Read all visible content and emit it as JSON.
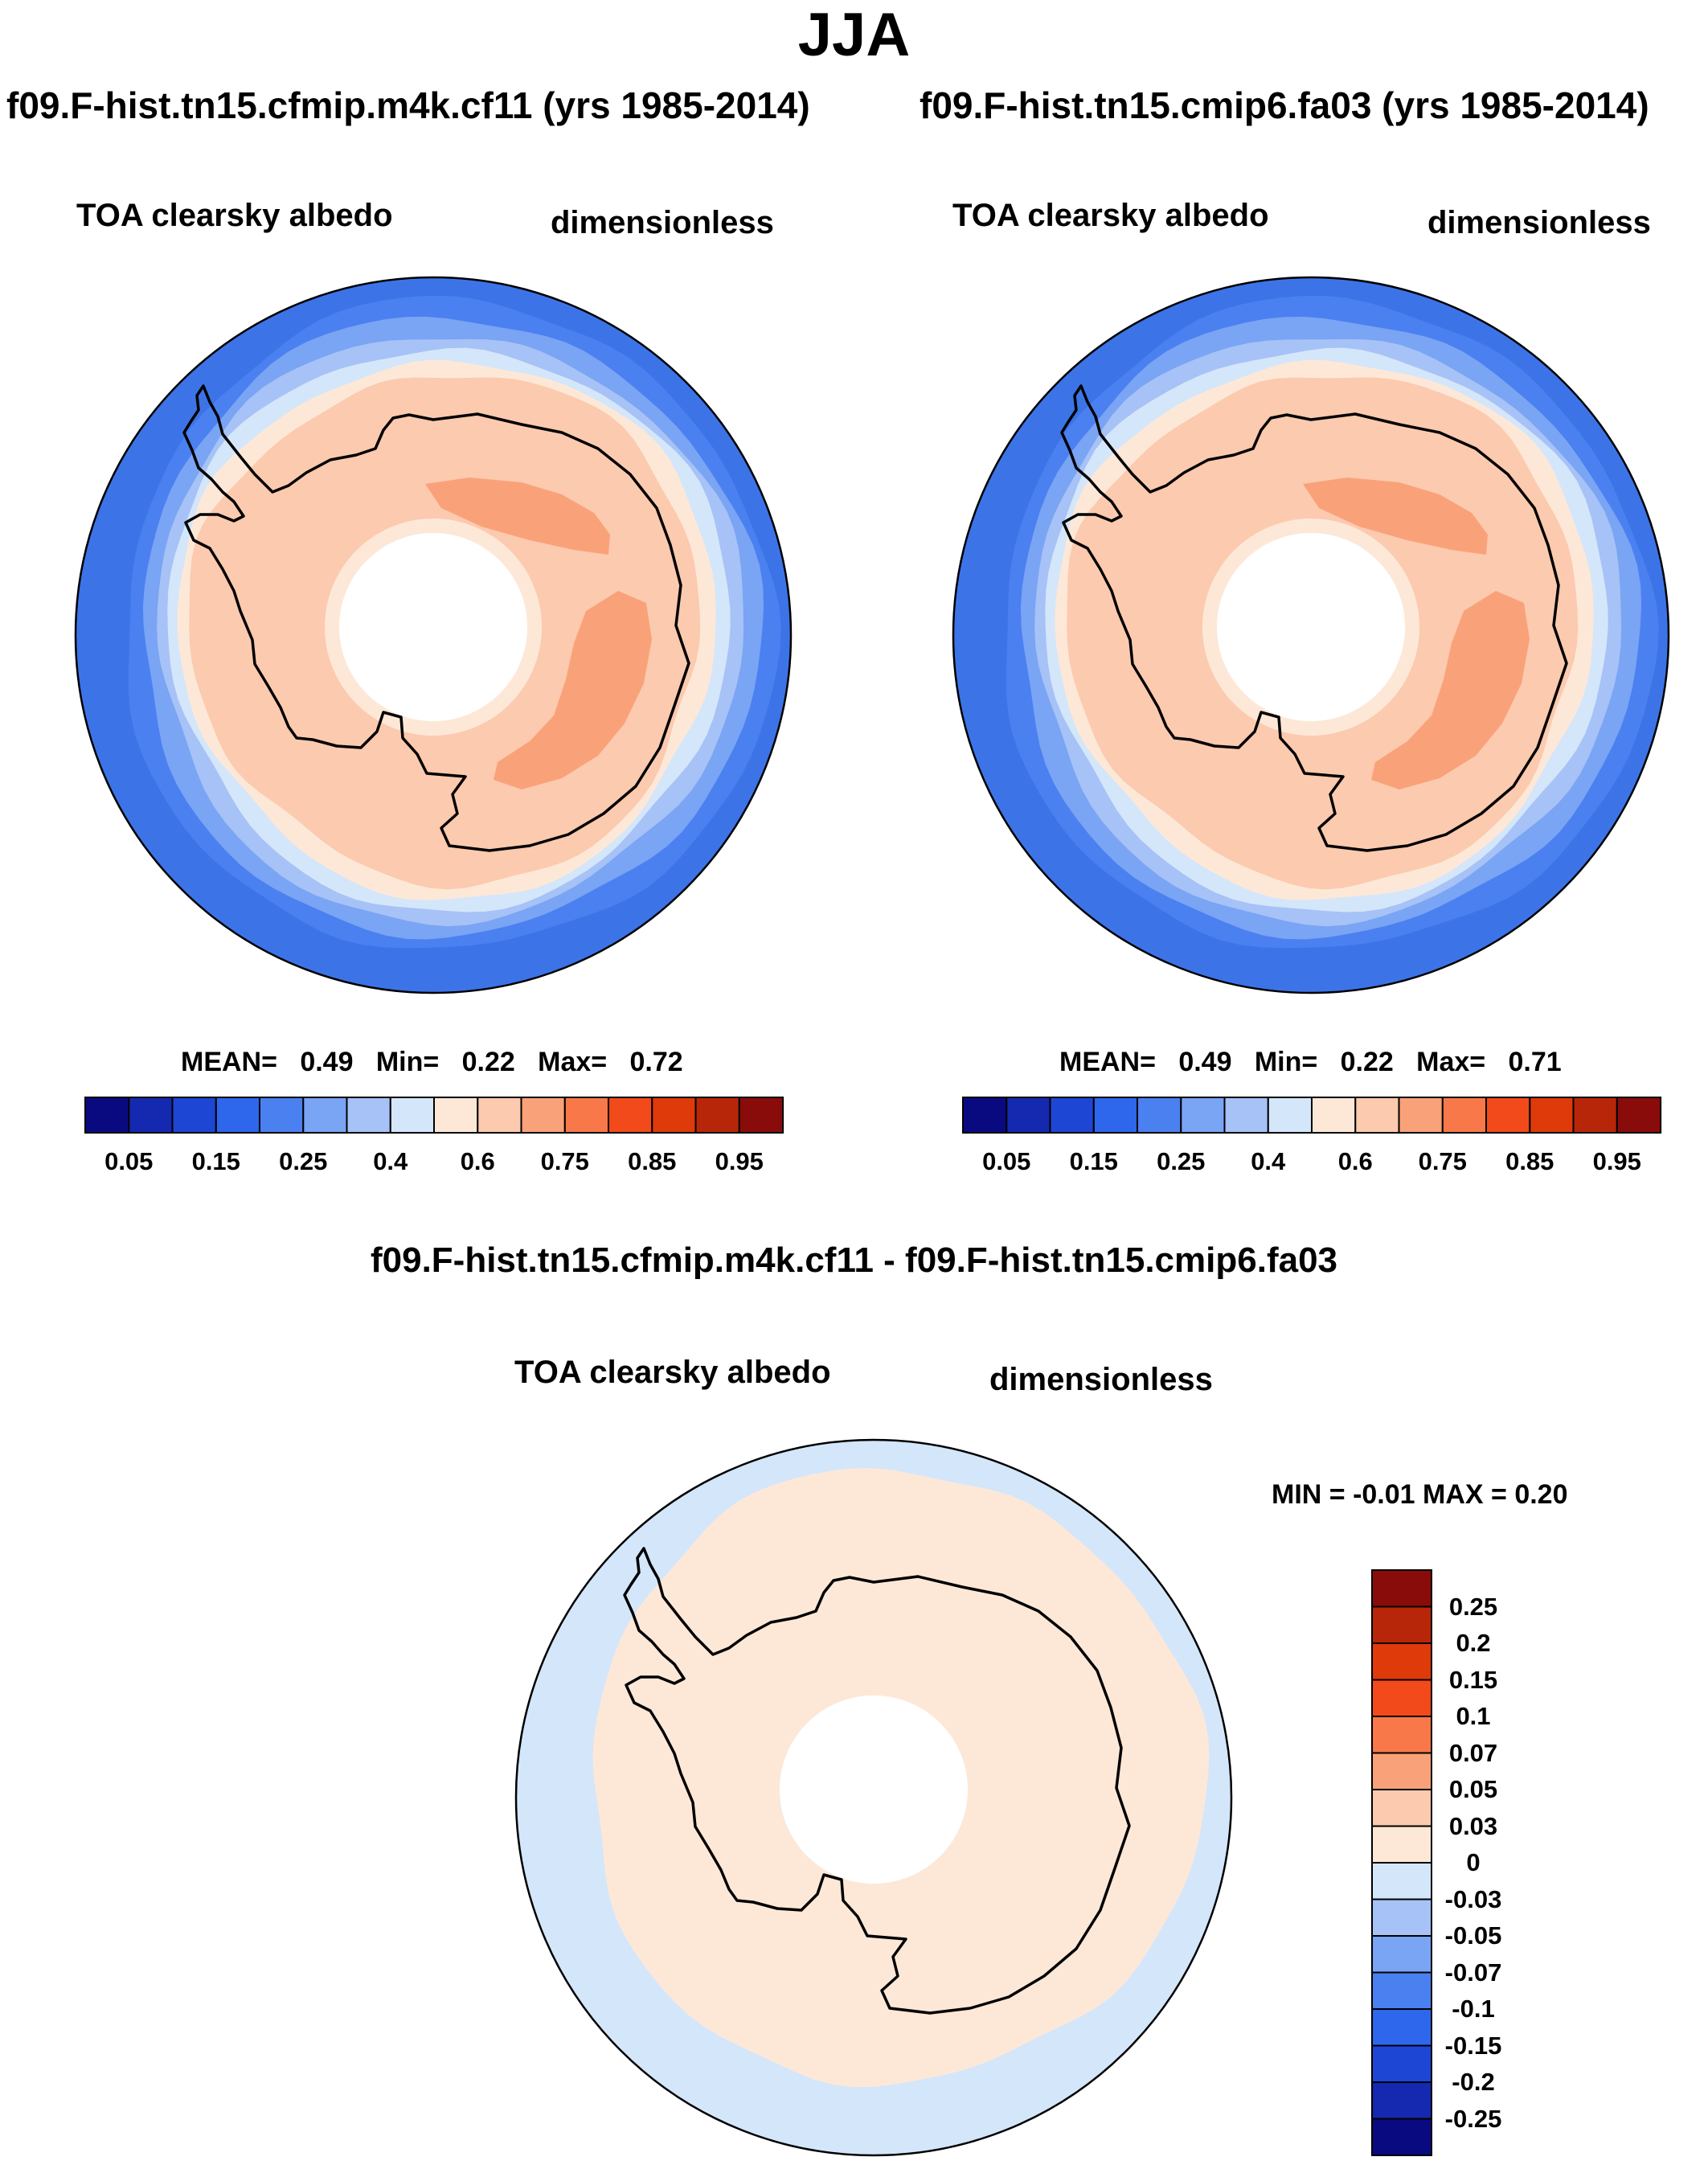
{
  "title": "JJA",
  "variable": "TOA clearsky albedo",
  "units": "dimensionless",
  "panels": [
    {
      "case_title": "f09.F-hist.tn15.cfmip.m4k.cf11 (yrs 1985-2014)",
      "stats": {
        "mean_label": "MEAN=",
        "mean": "0.49",
        "min_label": "Min=",
        "min": "0.22",
        "max_label": "Max=",
        "max": "0.72"
      }
    },
    {
      "case_title": "f09.F-hist.tn15.cmip6.fa03 (yrs 1985-2014)",
      "stats": {
        "mean_label": "MEAN=",
        "mean": "0.49",
        "min_label": "Min=",
        "min": "0.22",
        "max_label": "Max=",
        "max": "0.71"
      }
    }
  ],
  "difference": {
    "title": "f09.F-hist.tn15.cfmip.m4k.cf11 - f09.F-hist.tn15.cmip6.fa03",
    "min_max_text": "MIN =  -0.01 MAX =   0.20"
  },
  "chart_data": [
    {
      "type": "contour-map",
      "projection": "south-polar-stereographic",
      "title": "TOA clearsky albedo",
      "case": "f09.F-hist.tn15.cfmip.m4k.cf11 (yrs 1985-2014)",
      "mean": 0.49,
      "min": 0.22,
      "max": 0.72,
      "levels": [
        0.05,
        0.1,
        0.15,
        0.2,
        0.25,
        0.3,
        0.4,
        0.5,
        0.6,
        0.7,
        0.75,
        0.8,
        0.85,
        0.9,
        0.95
      ],
      "colorbar_labels": [
        "0.05",
        "0.15",
        "0.25",
        "0.4",
        "0.6",
        "0.75",
        "0.85",
        "0.95"
      ]
    },
    {
      "type": "contour-map",
      "projection": "south-polar-stereographic",
      "title": "TOA clearsky albedo",
      "case": "f09.F-hist.tn15.cmip6.fa03 (yrs 1985-2014)",
      "mean": 0.49,
      "min": 0.22,
      "max": 0.71,
      "levels": [
        0.05,
        0.1,
        0.15,
        0.2,
        0.25,
        0.3,
        0.4,
        0.5,
        0.6,
        0.7,
        0.75,
        0.8,
        0.85,
        0.9,
        0.95
      ],
      "colorbar_labels": [
        "0.05",
        "0.15",
        "0.25",
        "0.4",
        "0.6",
        "0.75",
        "0.85",
        "0.95"
      ]
    },
    {
      "type": "contour-map",
      "projection": "south-polar-stereographic",
      "title": "TOA clearsky albedo",
      "case": "f09.F-hist.tn15.cfmip.m4k.cf11 - f09.F-hist.tn15.cmip6.fa03",
      "min": -0.01,
      "max": 0.2,
      "levels": [
        -0.25,
        -0.2,
        -0.15,
        -0.1,
        -0.07,
        -0.05,
        -0.03,
        0,
        0.03,
        0.05,
        0.07,
        0.1,
        0.15,
        0.2,
        0.25
      ],
      "colorbar_labels": [
        "0.25",
        "0.2",
        "0.15",
        "0.1",
        "0.07",
        "0.05",
        "0.03",
        "0",
        "-0.03",
        "-0.05",
        "-0.07",
        "-0.1",
        "-0.15",
        "-0.2",
        "-0.25"
      ]
    }
  ],
  "colors": {
    "abs_palette": [
      "#0a0a80",
      "#1528b0",
      "#1e46d4",
      "#2e66ec",
      "#4b80f0",
      "#7aa4f4",
      "#a6c2f6",
      "#d4e6fa",
      "#fde8d8",
      "#fccaae",
      "#f9a27a",
      "#f8784a",
      "#f24a1a",
      "#de3a0a",
      "#b8260a",
      "#8a0c0a"
    ],
    "diff_palette": [
      "#8a0c0a",
      "#b8260a",
      "#de3a0a",
      "#f24a1a",
      "#f8784a",
      "#f9a27a",
      "#fccaae",
      "#fde8d8",
      "#d4e6fa",
      "#a6c2f6",
      "#7aa4f4",
      "#4b80f0",
      "#2e66ec",
      "#1e46d4",
      "#1528b0",
      "#0a0a80"
    ],
    "ocean_far": "#3c74e8",
    "ice_high": "#f9a27a"
  }
}
